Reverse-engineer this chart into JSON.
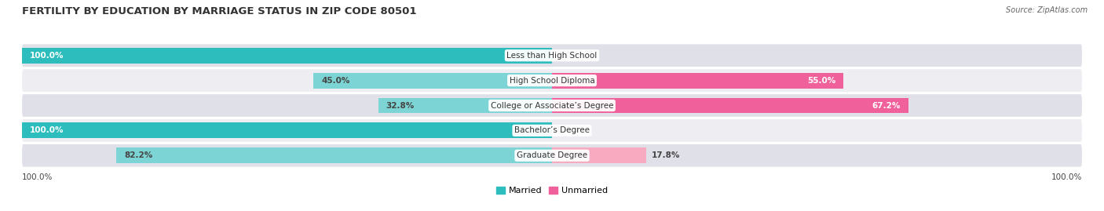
{
  "title": "FERTILITY BY EDUCATION BY MARRIAGE STATUS IN ZIP CODE 80501",
  "source": "Source: ZipAtlas.com",
  "categories": [
    "Less than High School",
    "High School Diploma",
    "College or Associate’s Degree",
    "Bachelor’s Degree",
    "Graduate Degree"
  ],
  "married_pct": [
    100.0,
    45.0,
    32.8,
    100.0,
    82.2
  ],
  "unmarried_pct": [
    0.0,
    55.0,
    67.2,
    0.0,
    17.8
  ],
  "married_color_full": "#2dbdbd",
  "married_color_partial": "#7dd4d4",
  "unmarried_color_full": "#f0609a",
  "unmarried_color_partial": "#f8aac0",
  "row_bg_light": "#ededf2",
  "row_bg_dark": "#e0e0e8",
  "title_fontsize": 9.5,
  "label_fontsize": 7.5,
  "value_fontsize": 7.5,
  "source_fontsize": 7,
  "legend_fontsize": 8,
  "fig_bg": "#ffffff",
  "text_color": "#444444",
  "axis_label": "100.0%"
}
